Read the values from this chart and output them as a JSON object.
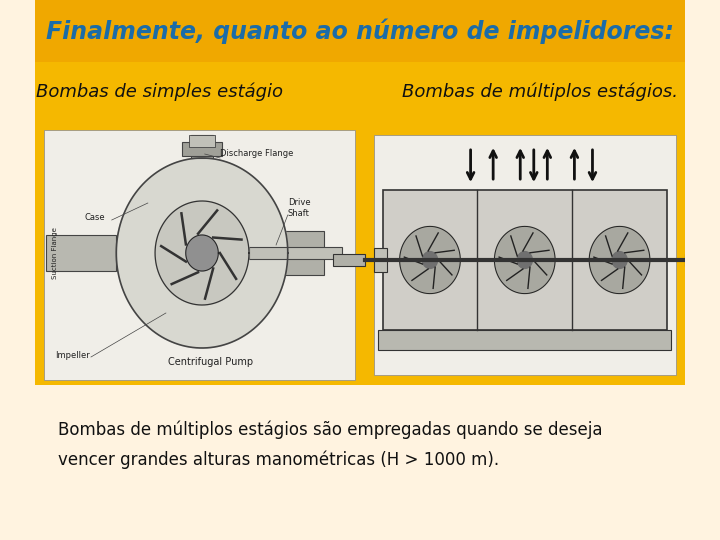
{
  "bg_color": "#FFF3E0",
  "header_bg_color": "#F0A800",
  "header_text": "Finalmente, quanto ao número de impelidores:",
  "header_text_color": "#1B6CA8",
  "header_fontsize": 17,
  "label_left": "Bombas de simples estágio",
  "label_right": "Bombas de múltiplos estágios.",
  "label_fontsize": 13,
  "label_color": "#111111",
  "body_text_line1": "Bombas de múltiplos estágios são empregadas quando se deseja",
  "body_text_line2": "vencer grandes alturas manométricas (H > 1000 m).",
  "body_fontsize": 12,
  "body_color": "#111111",
  "yellow_area_color": "#F5B800",
  "left_img_bg": "#F0EEE8",
  "right_img_bg": "#F5B800"
}
